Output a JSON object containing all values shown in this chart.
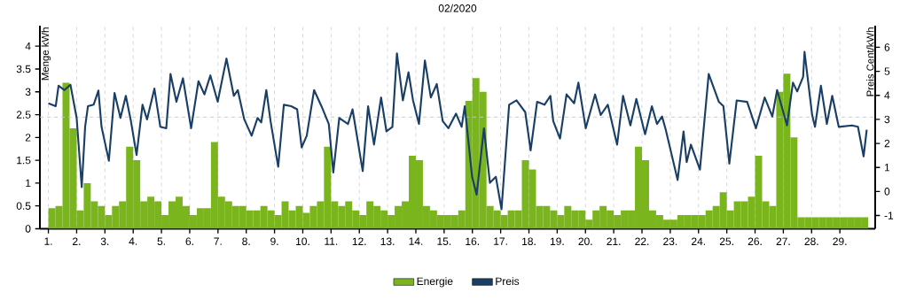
{
  "chart_data": {
    "type": "bar",
    "title": "02/2020",
    "ylabel": "Menge kWh",
    "y2label": "Preis Cent/kWh",
    "grid": "x",
    "legend": "bottom",
    "xlim": [
      0.7,
      30.25
    ],
    "xticks": [
      {
        "value": 1,
        "label": "1."
      },
      {
        "value": 2,
        "label": "2."
      },
      {
        "value": 3,
        "label": "3."
      },
      {
        "value": 4,
        "label": "4."
      },
      {
        "value": 5,
        "label": "5."
      },
      {
        "value": 6,
        "label": "6."
      },
      {
        "value": 7,
        "label": "7."
      },
      {
        "value": 8,
        "label": "8."
      },
      {
        "value": 9,
        "label": "9."
      },
      {
        "value": 10,
        "label": "10."
      },
      {
        "value": 11,
        "label": "11."
      },
      {
        "value": 12,
        "label": "12."
      },
      {
        "value": 13,
        "label": "13."
      },
      {
        "value": 14,
        "label": "14."
      },
      {
        "value": 15,
        "label": "15."
      },
      {
        "value": 16,
        "label": "16."
      },
      {
        "value": 17,
        "label": "17."
      },
      {
        "value": 18,
        "label": "18."
      },
      {
        "value": 19,
        "label": "19."
      },
      {
        "value": 20,
        "label": "20."
      },
      {
        "value": 21,
        "label": "21."
      },
      {
        "value": 22,
        "label": "22."
      },
      {
        "value": 23,
        "label": "23."
      },
      {
        "value": 24,
        "label": "24."
      },
      {
        "value": 25,
        "label": "25."
      },
      {
        "value": 26,
        "label": "26."
      },
      {
        "value": 27,
        "label": "27."
      },
      {
        "value": 28,
        "label": "28."
      },
      {
        "value": 29,
        "label": "29."
      }
    ],
    "ylim": [
      0,
      4.45
    ],
    "yticks": [
      0,
      0.5,
      1,
      1.5,
      2,
      2.5,
      3,
      3.5,
      4
    ],
    "y2lim": [
      -1.55,
      6.9
    ],
    "y2ticks": [
      -1,
      0,
      1,
      2,
      3,
      4,
      5,
      6
    ],
    "ref_lines": [
      {
        "axis": "y2",
        "value": 3.1,
        "color": "#c8c8c8",
        "line_style": "dashed"
      }
    ],
    "series": [
      {
        "name": "Energie",
        "color": "#7ab51d",
        "x": [
          1.125,
          1.375,
          1.625,
          1.875,
          2.125,
          2.375,
          2.625,
          2.875,
          3.125,
          3.375,
          3.625,
          3.875,
          4.125,
          4.375,
          4.625,
          4.875,
          5.125,
          5.375,
          5.625,
          5.875,
          6.125,
          6.375,
          6.625,
          6.875,
          7.125,
          7.375,
          7.625,
          7.875,
          8.125,
          8.375,
          8.625,
          8.875,
          9.125,
          9.375,
          9.625,
          9.875,
          10.125,
          10.375,
          10.625,
          10.875,
          11.125,
          11.375,
          11.625,
          11.875,
          12.125,
          12.375,
          12.625,
          12.875,
          13.125,
          13.375,
          13.625,
          13.875,
          14.125,
          14.375,
          14.625,
          14.875,
          15.125,
          15.375,
          15.625,
          15.875,
          16.125,
          16.375,
          16.625,
          16.875,
          17.125,
          17.375,
          17.625,
          17.875,
          18.125,
          18.375,
          18.625,
          18.875,
          19.125,
          19.375,
          19.625,
          19.875,
          20.125,
          20.375,
          20.625,
          20.875,
          21.125,
          21.375,
          21.625,
          21.875,
          22.125,
          22.375,
          22.625,
          22.875,
          23.125,
          23.375,
          23.625,
          23.875,
          24.125,
          24.375,
          24.625,
          24.875,
          25.125,
          25.375,
          25.625,
          25.875,
          26.125,
          26.375,
          26.625,
          26.875,
          27.125,
          27.375,
          27.625,
          27.875,
          28.125,
          28.375,
          28.625,
          28.875,
          29.125,
          29.375,
          29.625,
          29.875
        ],
        "values": [
          0.45,
          0.5,
          3.2,
          2.2,
          0.4,
          1.0,
          0.6,
          0.5,
          0.3,
          0.5,
          0.6,
          1.8,
          1.5,
          0.6,
          0.7,
          0.6,
          0.3,
          0.6,
          0.7,
          0.5,
          0.3,
          0.45,
          0.45,
          1.9,
          0.7,
          0.6,
          0.5,
          0.5,
          0.4,
          0.4,
          0.5,
          0.4,
          0.3,
          0.6,
          0.4,
          0.5,
          0.35,
          0.5,
          0.6,
          1.8,
          0.6,
          0.5,
          0.6,
          0.4,
          0.3,
          0.6,
          0.5,
          0.4,
          0.3,
          0.5,
          0.6,
          1.6,
          1.5,
          0.5,
          0.4,
          0.3,
          0.3,
          0.3,
          0.4,
          2.8,
          3.3,
          3.0,
          0.5,
          0.4,
          0.3,
          0.4,
          0.4,
          1.5,
          1.3,
          0.5,
          0.5,
          0.4,
          0.3,
          0.5,
          0.4,
          0.4,
          0.2,
          0.4,
          0.5,
          0.4,
          0.3,
          0.4,
          0.4,
          1.8,
          1.5,
          0.4,
          0.3,
          0.2,
          0.2,
          0.3,
          0.3,
          0.3,
          0.3,
          0.4,
          0.5,
          0.8,
          0.4,
          0.6,
          0.6,
          0.7,
          1.6,
          0.6,
          0.5,
          3.0,
          3.4,
          2.0,
          0.25,
          0.25,
          0.25,
          0.25,
          0.25,
          0.25,
          0.25,
          0.25,
          0.25,
          0.25
        ]
      },
      {
        "name": "Preis",
        "type": "line",
        "axis": "y2",
        "color": "#1a3f66",
        "x": [
          1.0,
          1.26,
          1.36,
          1.57,
          1.78,
          2.0,
          2.18,
          2.3,
          2.4,
          2.6,
          2.77,
          2.88,
          3.14,
          3.34,
          3.55,
          3.74,
          3.92,
          4.12,
          4.33,
          4.49,
          4.75,
          4.96,
          5.17,
          5.32,
          5.53,
          5.76,
          6.05,
          6.31,
          6.52,
          6.73,
          6.99,
          7.3,
          7.56,
          7.7,
          7.93,
          8.19,
          8.4,
          8.53,
          8.71,
          8.86,
          9.13,
          9.33,
          9.59,
          9.8,
          9.96,
          10.14,
          10.4,
          10.66,
          10.92,
          11.08,
          11.29,
          11.6,
          11.76,
          12.12,
          12.31,
          12.52,
          12.77,
          12.96,
          13.17,
          13.33,
          13.54,
          13.74,
          13.9,
          14.11,
          14.32,
          14.53,
          14.74,
          14.95,
          15.15,
          15.42,
          15.62,
          15.73,
          15.99,
          16.15,
          16.41,
          16.62,
          16.83,
          17.03,
          17.3,
          17.56,
          17.87,
          18.06,
          18.29,
          18.55,
          18.76,
          18.86,
          19.1,
          19.33,
          19.6,
          19.75,
          20.01,
          20.34,
          20.54,
          20.79,
          21.12,
          21.33,
          21.59,
          21.8,
          22.11,
          22.35,
          22.53,
          22.71,
          22.84,
          23.26,
          23.47,
          23.58,
          23.73,
          24.05,
          24.36,
          24.72,
          24.88,
          25.09,
          25.35,
          25.72,
          26.03,
          26.34,
          26.61,
          26.78,
          27.13,
          27.34,
          27.49,
          27.7,
          27.75,
          28.02,
          28.12,
          28.33,
          28.54,
          28.73,
          28.96,
          29.43,
          29.64,
          29.84,
          29.95
        ],
        "values": [
          3.67,
          3.55,
          4.4,
          4.22,
          4.44,
          3.06,
          0.18,
          2.69,
          3.55,
          3.61,
          4.2,
          2.69,
          1.28,
          4.1,
          3.06,
          3.98,
          2.93,
          1.52,
          3.61,
          3.0,
          4.28,
          2.69,
          2.63,
          4.89,
          3.73,
          4.71,
          2.63,
          4.59,
          4.04,
          4.83,
          3.73,
          5.53,
          3.98,
          4.22,
          3.0,
          2.32,
          3.06,
          2.87,
          4.22,
          2.93,
          1.03,
          3.61,
          3.55,
          3.42,
          1.83,
          2.32,
          4.22,
          3.55,
          2.81,
          0.79,
          3.06,
          2.81,
          3.42,
          0.85,
          3.55,
          1.95,
          3.91,
          2.5,
          2.69,
          5.75,
          3.79,
          4.96,
          3.79,
          2.81,
          5.45,
          3.91,
          4.47,
          2.93,
          2.63,
          3.24,
          2.69,
          3.55,
          0.61,
          -0.13,
          2.63,
          0.36,
          0.61,
          -0.74,
          3.61,
          3.79,
          3.3,
          1.71,
          3.73,
          3.61,
          3.98,
          2.93,
          2.2,
          4.04,
          3.67,
          4.53,
          2.63,
          4.04,
          3.18,
          3.61,
          1.95,
          3.98,
          2.75,
          3.85,
          2.38,
          3.55,
          2.81,
          3.12,
          2.57,
          0.48,
          2.5,
          1.22,
          1.95,
          0.91,
          4.89,
          3.73,
          3.55,
          1.16,
          3.79,
          3.73,
          2.63,
          3.91,
          3.12,
          4.22,
          2.75,
          4.53,
          4.16,
          4.77,
          5.81,
          3.18,
          2.69,
          4.4,
          2.81,
          3.98,
          2.69,
          2.75,
          2.69,
          1.46,
          2.57
        ]
      }
    ]
  }
}
